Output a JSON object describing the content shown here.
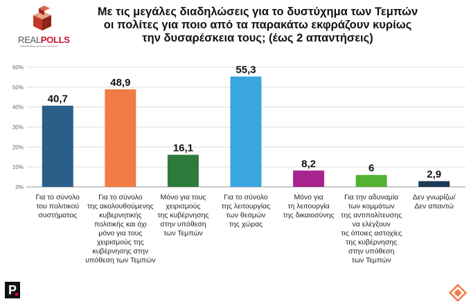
{
  "header": {
    "title_lines": [
      "Με τις μεγάλες διαδηλώσεις για το δυστύχημα των Τεμπών",
      "οι πολίτες για ποιο από τα παρακάτω εκφράζουν κυρίως",
      "την δυσαρέσκεια τους; (έως 2 απαντήσεις)"
    ]
  },
  "logo": {
    "real": "REAL",
    "polls": "POLLS",
    "tagline": "understanding opinion for the future"
  },
  "footer": {
    "brand_letter": "P"
  },
  "chart_data": {
    "type": "bar",
    "title": "Με τις μεγάλες διαδηλώσεις για το δυστύχημα των Τεμπών οι πολίτες για ποιο από τα παρακάτω εκφράζουν κυρίως την δυσαρέσκεια τους; (έως 2 απαντήσεις)",
    "xlabel": "",
    "ylabel": "",
    "ylim": [
      0,
      60
    ],
    "y_ticks": [
      "0%",
      "10%",
      "20%",
      "30%",
      "40%",
      "50%",
      "60%"
    ],
    "grid": true,
    "categories": [
      [
        "Για το σύνολο",
        "του  πολιτικού",
        "συστήματος"
      ],
      [
        "Για το σύνολο",
        "της ακολουθούμενης",
        "κυβερνητικής",
        "πολιτικής και όχι",
        "μόνο για τους",
        "χειρισμούς της",
        "κυβέρνησης στην",
        "υπόθεση των Τεμπών"
      ],
      [
        "Μόνο για τους",
        "χειρισμούς",
        "της κυβέρνησης",
        "στην υπόθεση",
        "των Τεμπών"
      ],
      [
        "Για το σύνολο",
        "της  λειτουργίας",
        "των θεσμών",
        "της χώρας"
      ],
      [
        "Μόνο για",
        "τη λειτουργία",
        "της δικαιοσύνης"
      ],
      [
        "Για την αδυναμία",
        "των κομμάτων",
        "της αντιπολίτευσης",
        "να ελέγξουν",
        "τις όποιες αστοχίες",
        "της κυβέρνησης",
        "στην υπόθεση",
        "των Τεμπών"
      ],
      [
        "Δεν γνωρίζω/",
        "Δεν απαντώ"
      ]
    ],
    "values": [
      40.7,
      48.9,
      16.1,
      55.3,
      8.2,
      6,
      2.9
    ],
    "value_labels": [
      "40,7",
      "48,9",
      "16,1",
      "55,3",
      "8,2",
      "6",
      "2,9"
    ],
    "colors": [
      "#2a5f8a",
      "#f07c45",
      "#2e7a3c",
      "#3aa6df",
      "#a7248f",
      "#53b233",
      "#1c3b55"
    ]
  }
}
